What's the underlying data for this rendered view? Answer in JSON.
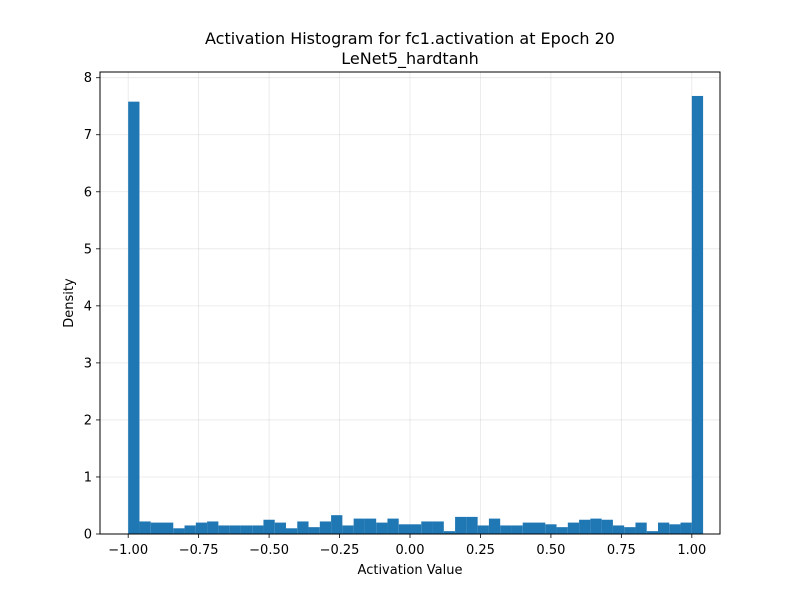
{
  "chart_data": {
    "type": "bar",
    "title": "Activation Histogram for fc1.activation at Epoch 20",
    "subtitle": "LeNet5_hardtanh",
    "xlabel": "Activation Value",
    "ylabel": "Density",
    "xlim": [
      -1.1,
      1.1
    ],
    "ylim": [
      0,
      8.1
    ],
    "grid": true,
    "bar_color": "#1f77b4",
    "x_ticks": [
      -1.0,
      -0.75,
      -0.5,
      -0.25,
      0.0,
      0.25,
      0.5,
      0.75,
      1.0
    ],
    "x_tick_labels": [
      "−1.00",
      "−0.75",
      "−0.50",
      "−0.25",
      "0.00",
      "0.25",
      "0.50",
      "0.75",
      "1.00"
    ],
    "y_ticks": [
      0,
      1,
      2,
      3,
      4,
      5,
      6,
      7,
      8
    ],
    "y_tick_labels": [
      "0",
      "1",
      "2",
      "3",
      "4",
      "5",
      "6",
      "7",
      "8"
    ],
    "bin_edges_start": -1.0,
    "bin_width": 0.04,
    "values": [
      7.58,
      0.22,
      0.2,
      0.2,
      0.1,
      0.15,
      0.2,
      0.22,
      0.15,
      0.15,
      0.15,
      0.15,
      0.25,
      0.2,
      0.1,
      0.22,
      0.12,
      0.22,
      0.33,
      0.15,
      0.27,
      0.27,
      0.2,
      0.27,
      0.17,
      0.17,
      0.22,
      0.22,
      0.05,
      0.3,
      0.3,
      0.15,
      0.27,
      0.15,
      0.15,
      0.2,
      0.2,
      0.17,
      0.12,
      0.2,
      0.25,
      0.27,
      0.25,
      0.15,
      0.12,
      0.2,
      0.05,
      0.2,
      0.17,
      0.2,
      7.68
    ]
  }
}
